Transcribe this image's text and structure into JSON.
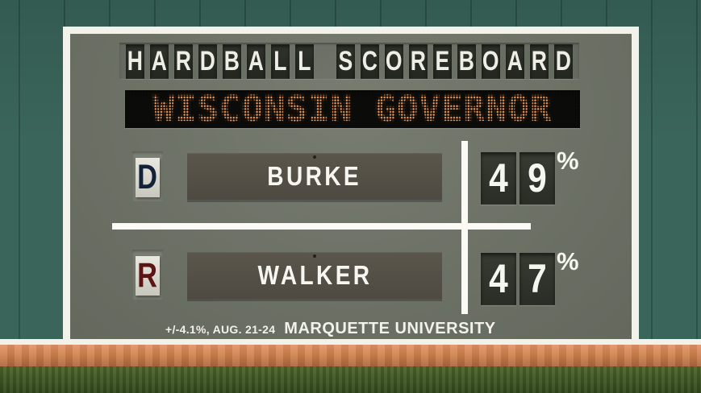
{
  "scoreboard": {
    "title": "HARDBALL SCOREBOARD",
    "headline": "WISCONSIN GOVERNOR",
    "rows": [
      {
        "party": "D",
        "party_color": "#14213a",
        "name": "BURKE",
        "digits": [
          "4",
          "9"
        ],
        "unit": "%",
        "value": 49
      },
      {
        "party": "R",
        "party_color": "#5c1514",
        "name": "WALKER",
        "digits": [
          "4",
          "7"
        ],
        "unit": "%",
        "value": 47
      }
    ],
    "footnote": {
      "margin_dates": "+/-4.1%, AUG. 21-24",
      "source": "MARQUETTE UNIVERSITY"
    }
  },
  "colors": {
    "wall_green": "#3a655a",
    "panel_gray": "#6f7468",
    "frame_white": "#f2f1ea",
    "tile_dark": "#272b25",
    "led_orange": "#f09a5a",
    "led_black": "#0b0b09",
    "name_panel_brown": "#524e45",
    "dem_navy": "#14213a",
    "rep_maroon": "#5c1514",
    "dirt_orange": "#d0814e",
    "grass_green": "#3d5526"
  },
  "chart_data": {
    "type": "table",
    "title": "HARDBALL SCOREBOARD",
    "subtitle": "WISCONSIN GOVERNOR",
    "categories": [
      "BURKE (D)",
      "WALKER (R)"
    ],
    "values": [
      49,
      47
    ],
    "unit": "%",
    "annotations": [
      "+/-4.1%, AUG. 21-24",
      "MARQUETTE UNIVERSITY"
    ]
  }
}
